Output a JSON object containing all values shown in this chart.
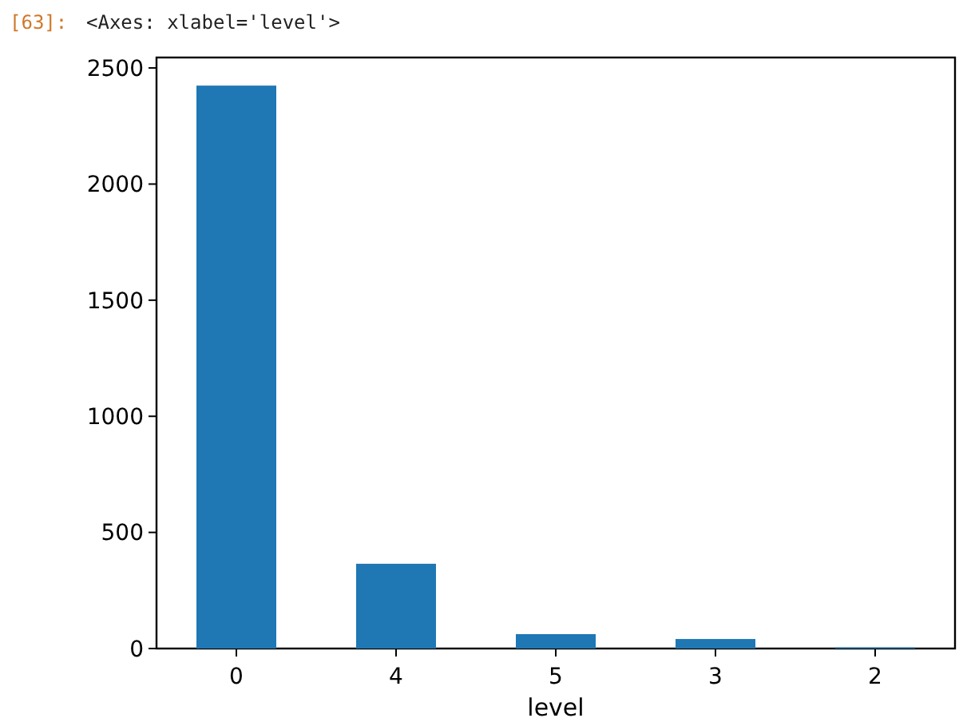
{
  "chart_data": {
    "type": "bar",
    "xlabel": "level",
    "categories": [
      "0",
      "4",
      "5",
      "3",
      "2"
    ],
    "values": [
      2424,
      365,
      62,
      41,
      5
    ],
    "color": "#1f77b4",
    "ylim": [
      0,
      2545
    ],
    "yticks": [
      0,
      500,
      1000,
      1500,
      2000,
      2500
    ],
    "grid": false,
    "annotations": [
      "[63]:",
      "<Axes: xlabel='level'>"
    ]
  }
}
